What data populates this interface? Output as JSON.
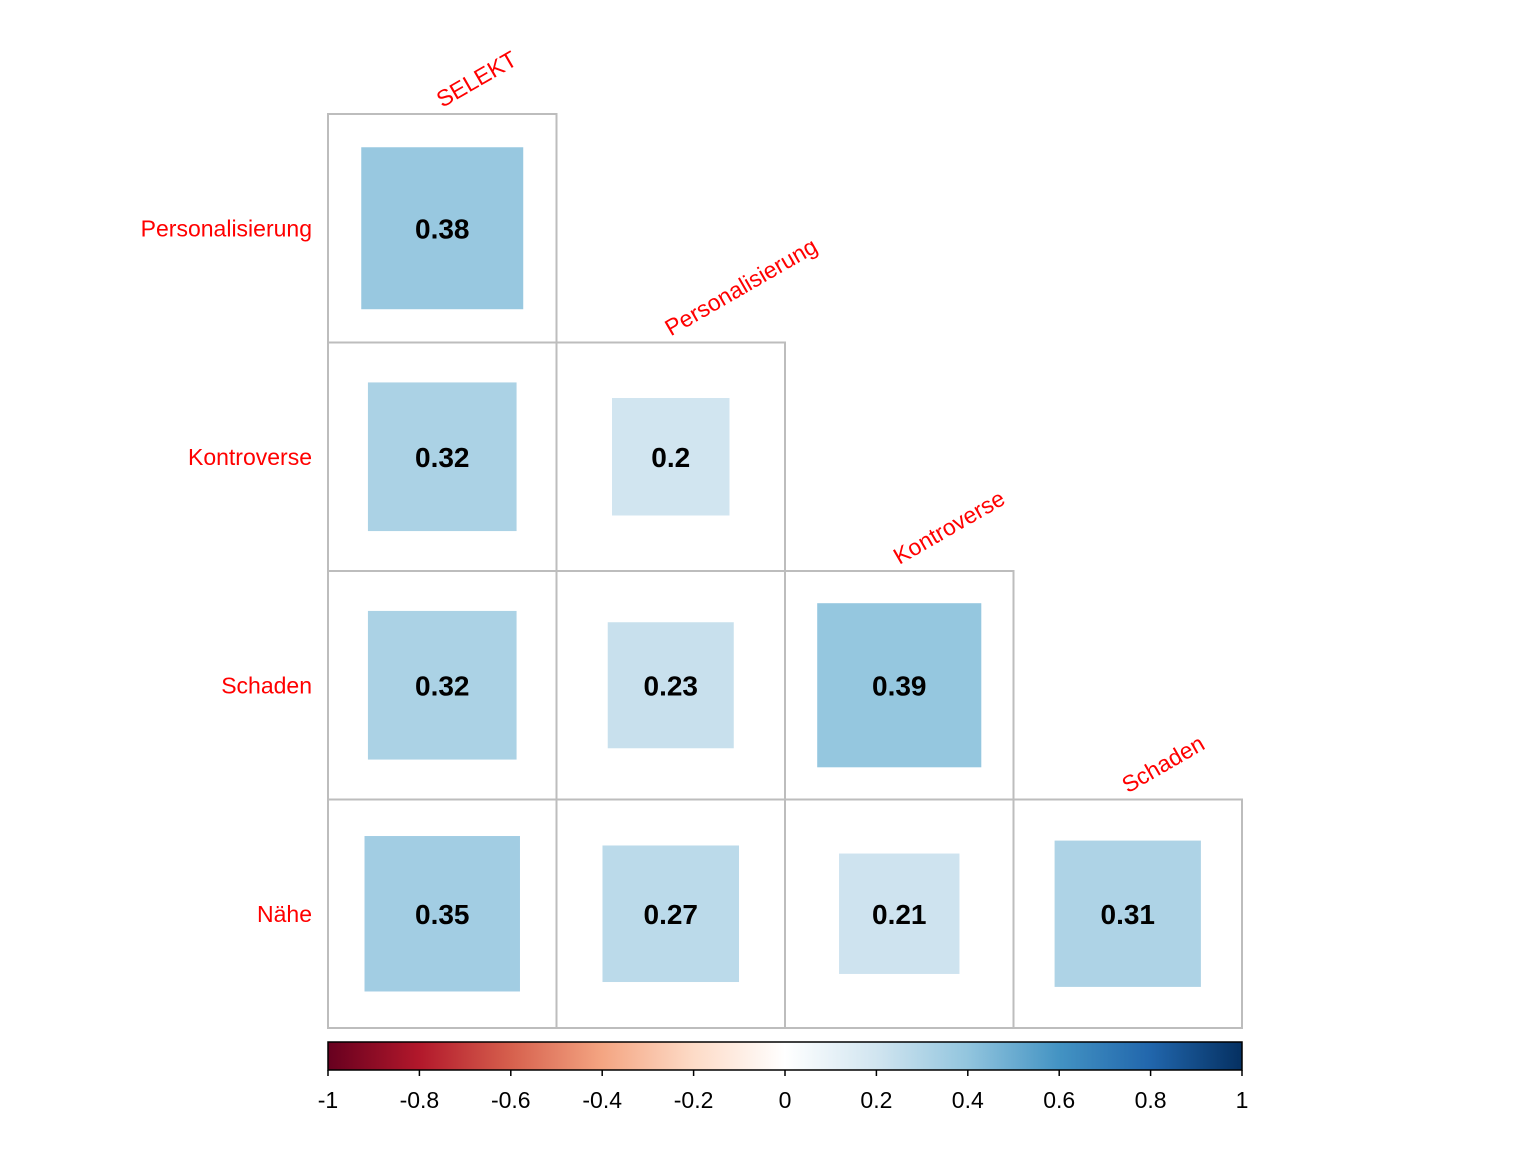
{
  "chart_data": {
    "type": "heatmap",
    "variant": "correlation-matrix-lower-triangle",
    "method": "square",
    "row_labels": [
      "Personalisierung",
      "Kontroverse",
      "Schaden",
      "Nähe"
    ],
    "column_labels": [
      "SELEKT",
      "Personalisierung",
      "Kontroverse",
      "Schaden"
    ],
    "values": [
      [
        0.38,
        null,
        null,
        null
      ],
      [
        0.32,
        0.2,
        null,
        null
      ],
      [
        0.32,
        0.23,
        0.39,
        null
      ],
      [
        0.35,
        0.27,
        0.21,
        0.31
      ]
    ],
    "colorbar": {
      "range": [
        -1,
        1
      ],
      "position": "bottom",
      "tick_labels": [
        "-1",
        "-0.8",
        "-0.6",
        "-0.4",
        "-0.2",
        "0",
        "0.2",
        "0.4",
        "0.6",
        "0.8",
        "1"
      ],
      "colors": [
        "#67001F",
        "#B2182B",
        "#D6604D",
        "#F4A582",
        "#FDDBC7",
        "#FFFFFF",
        "#D1E5F0",
        "#92C5DE",
        "#4393C3",
        "#2166AC",
        "#053061"
      ]
    },
    "label_color": "#FF0000",
    "value_label_color": "#000000",
    "grid_color": "#BDBDBD"
  }
}
